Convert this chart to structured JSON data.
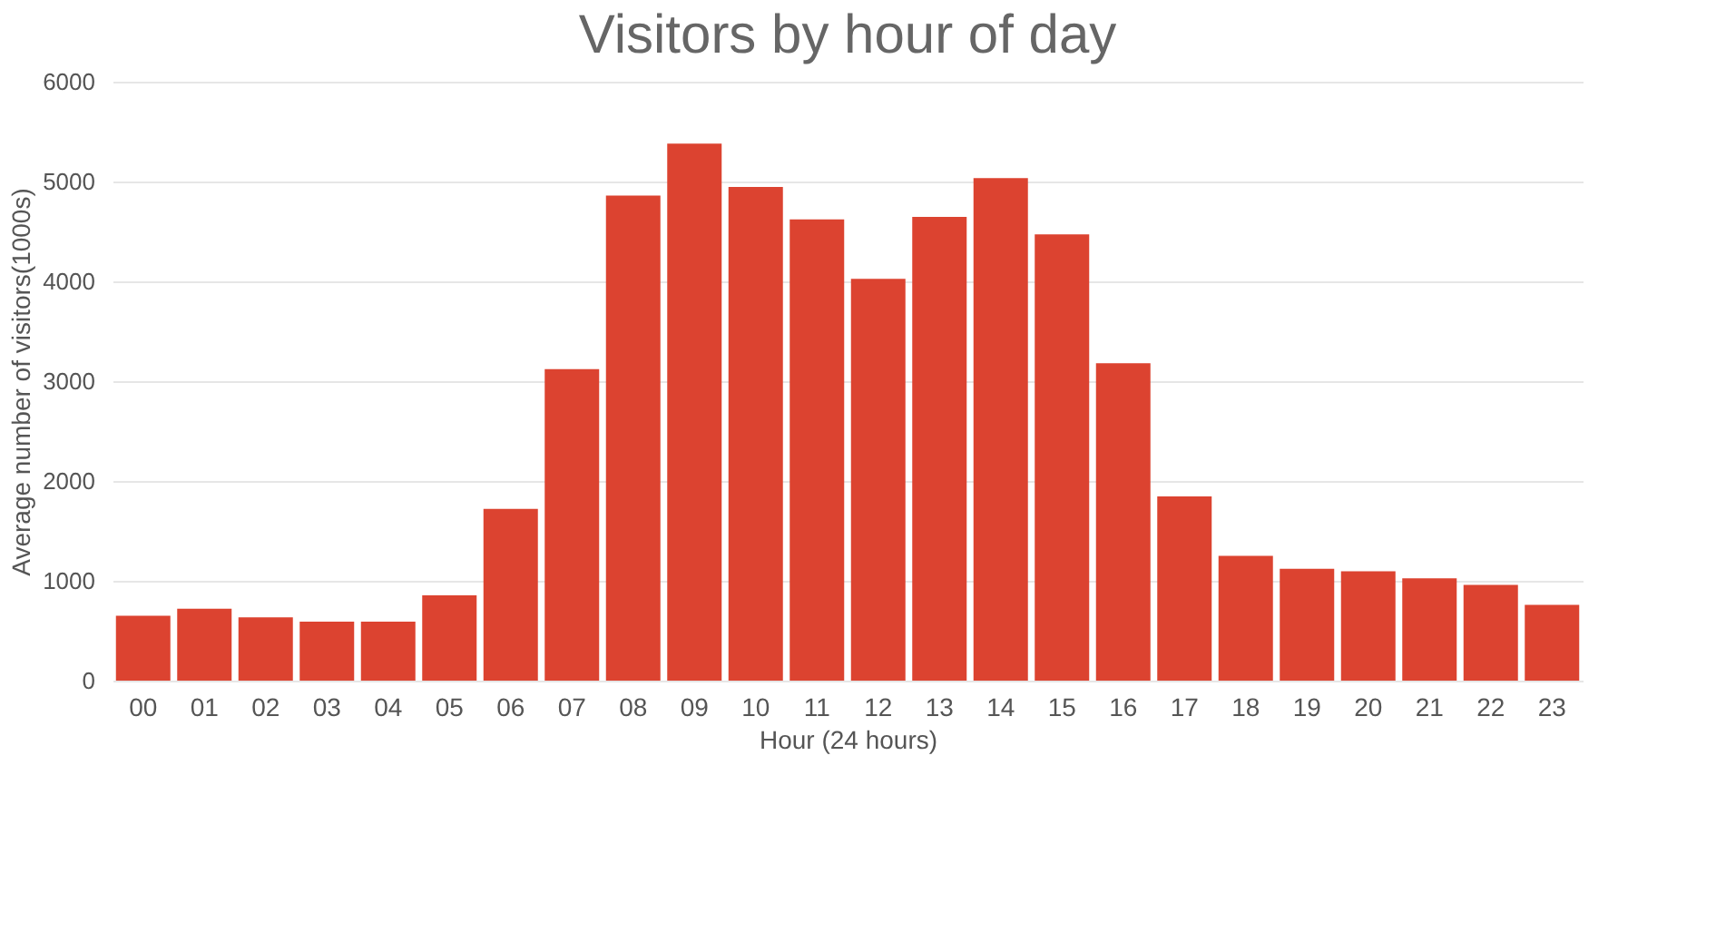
{
  "chart_data": {
    "type": "bar",
    "title": "Visitors by hour of day",
    "xlabel": "Hour (24 hours)",
    "ylabel": "Average number of visitors(1000s)",
    "categories": [
      "00",
      "01",
      "02",
      "03",
      "04",
      "05",
      "06",
      "07",
      "08",
      "09",
      "10",
      "11",
      "12",
      "13",
      "14",
      "15",
      "16",
      "17",
      "18",
      "19",
      "20",
      "21",
      "22",
      "23"
    ],
    "values": [
      650,
      720,
      635,
      590,
      590,
      855,
      1720,
      3120,
      4860,
      5380,
      4945,
      4620,
      4025,
      4645,
      5035,
      4470,
      3180,
      1845,
      1250,
      1120,
      1095,
      1025,
      960,
      760
    ],
    "color": "#dc4330",
    "ylim": [
      0,
      6000
    ],
    "yticks": [
      0,
      1000,
      2000,
      3000,
      4000,
      5000,
      6000
    ],
    "grid": "y"
  }
}
